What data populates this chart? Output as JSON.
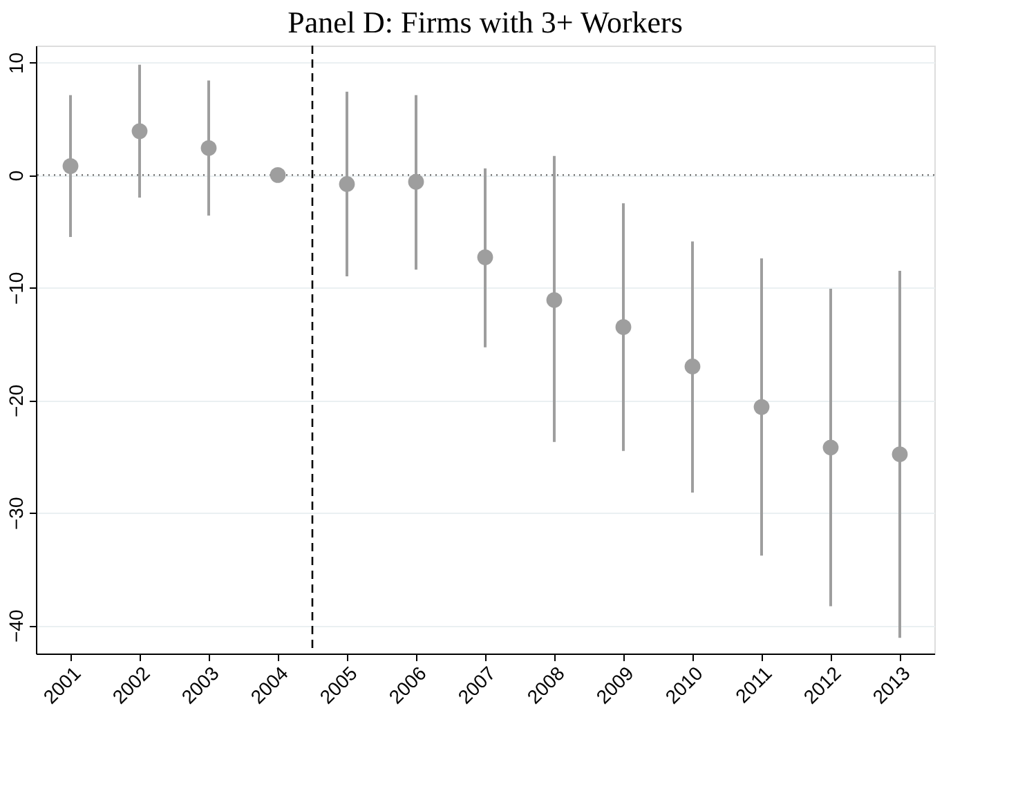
{
  "chart_data": {
    "type": "scatter",
    "title": "Panel D: Firms with 3+ Workers",
    "x": [
      2001,
      2002,
      2003,
      2004,
      2005,
      2006,
      2007,
      2008,
      2009,
      2010,
      2011,
      2012,
      2013
    ],
    "series": [
      {
        "color": "#9e9e9e",
        "values": [
          0.8,
          3.9,
          2.4,
          0,
          -0.8,
          -0.6,
          -7.3,
          -11.1,
          -13.5,
          -17.0,
          -20.6,
          -24.2,
          -24.8
        ],
        "errors": [
          [
            -5.5,
            7.1
          ],
          [
            -2.0,
            9.8
          ],
          [
            -3.6,
            8.4
          ],
          null,
          [
            -9.0,
            7.4
          ],
          [
            -8.4,
            7.1
          ],
          [
            -15.3,
            0.6
          ],
          [
            -23.7,
            1.7
          ],
          [
            -24.5,
            -2.5
          ],
          [
            -28.2,
            -5.9
          ],
          [
            -33.8,
            -7.4
          ],
          [
            -38.3,
            -10.1
          ],
          [
            -41.1,
            -8.5
          ]
        ]
      }
    ],
    "xlim": [
      2000.5,
      2013.5
    ],
    "xticks": [
      2001,
      2002,
      2003,
      2004,
      2005,
      2006,
      2007,
      2008,
      2009,
      2010,
      2011,
      2012,
      2013
    ],
    "ylim": [
      -42.5,
      11.5
    ],
    "yticks": [
      -40,
      -30,
      -20,
      -10,
      0,
      10
    ],
    "ref_lines": [
      {
        "axis": "y",
        "value": 0,
        "color": "#808080",
        "line_style": "dotted"
      },
      {
        "axis": "x",
        "value": 2004.5,
        "color": "#000000",
        "line_style": "dashed"
      }
    ],
    "grid": "y",
    "marker": "circle"
  }
}
